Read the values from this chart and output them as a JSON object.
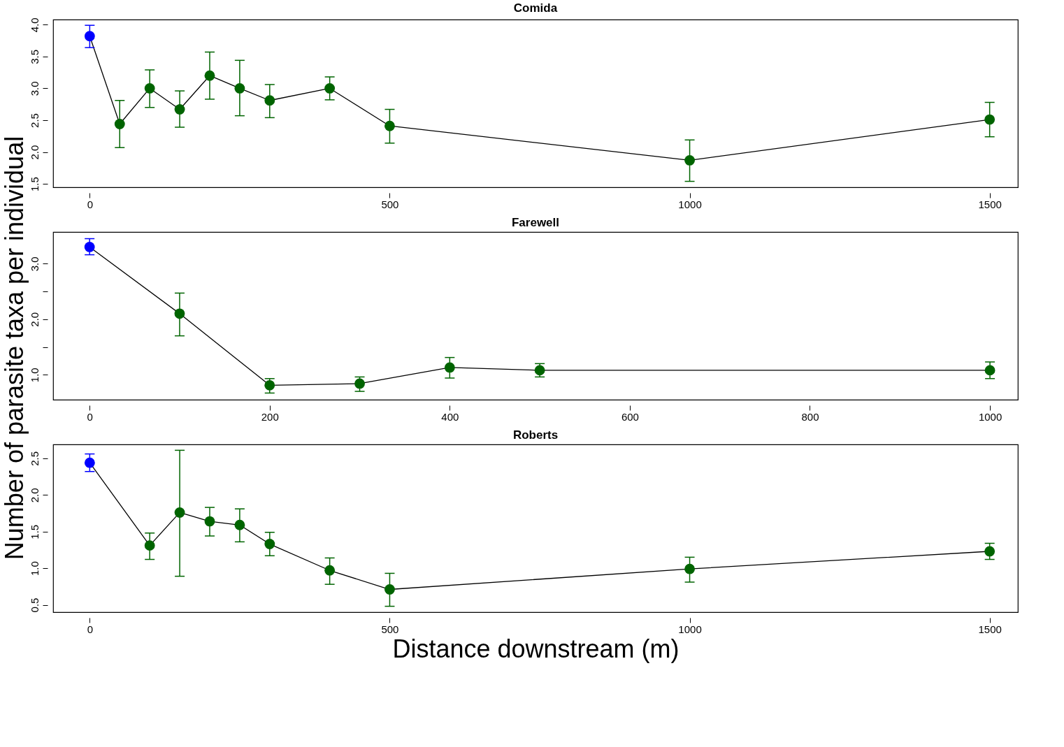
{
  "chart_data": [
    {
      "type": "line",
      "title": "Comida",
      "x": [
        0,
        50,
        100,
        150,
        200,
        250,
        300,
        400,
        500,
        1000,
        1500
      ],
      "xlim": [
        -61,
        1547
      ],
      "ylim": [
        1.447,
        4.08
      ],
      "xticks": [
        0,
        500,
        1000,
        1500
      ],
      "yticks": [
        1.5,
        {
          "value": 2,
          "label": "2.0"
        },
        2.5,
        {
          "value": 3,
          "label": "3.0"
        },
        3.5,
        {
          "value": 4,
          "label": "4.0"
        }
      ],
      "marker": "circle",
      "grid": false,
      "series": [
        {
          "color": "#000000",
          "colors": [
            "#0000ff",
            "#006400",
            "#006400",
            "#006400",
            "#006400",
            "#006400",
            "#006400",
            "#006400",
            "#006400",
            "#006400",
            "#006400"
          ],
          "values": [
            3.82,
            2.44,
            3.0,
            2.67,
            3.2,
            3.0,
            2.81,
            3.0,
            2.41,
            1.87,
            2.51
          ],
          "errors": [
            [
              3.64,
              3.99
            ],
            [
              2.07,
              2.81
            ],
            [
              2.7,
              3.29
            ],
            [
              2.39,
              2.96
            ],
            [
              2.83,
              3.57
            ],
            [
              2.57,
              3.44
            ],
            [
              2.54,
              3.06
            ],
            [
              2.82,
              3.18
            ],
            [
              2.14,
              2.67
            ],
            [
              1.54,
              2.19
            ],
            [
              2.24,
              2.78
            ]
          ]
        }
      ]
    },
    {
      "type": "line",
      "title": "Farewell",
      "ylabel": "Number of parasite taxa per individual",
      "x": [
        0,
        100,
        200,
        300,
        400,
        500,
        1000
      ],
      "xlim": [
        -40.5,
        1031
      ],
      "ylim": [
        0.55,
        3.57
      ],
      "xticks": [
        0,
        200,
        400,
        600,
        800,
        1000
      ],
      "yticks": [
        {
          "value": 1,
          "label": "1.0"
        },
        {
          "value": 1.5,
          "label": null
        },
        {
          "value": 2,
          "label": "2.0"
        },
        {
          "value": 2.5,
          "label": null
        },
        {
          "value": 3,
          "label": "3.0"
        }
      ],
      "marker": "circle",
      "grid": false,
      "series": [
        {
          "color": "#000000",
          "colors": [
            "#0000ff",
            "#006400",
            "#006400",
            "#006400",
            "#006400",
            "#006400",
            "#006400"
          ],
          "values": [
            3.3,
            2.1,
            0.81,
            0.84,
            1.13,
            1.08,
            1.08
          ],
          "errors": [
            [
              3.16,
              3.45
            ],
            [
              1.7,
              2.47
            ],
            [
              0.67,
              0.93
            ],
            [
              0.7,
              0.96
            ],
            [
              0.94,
              1.31
            ],
            [
              0.96,
              1.2
            ],
            [
              0.93,
              1.23
            ]
          ]
        }
      ]
    },
    {
      "type": "line",
      "title": "Roberts",
      "xlabel": "Distance downstream (m)",
      "x": [
        0,
        100,
        150,
        200,
        250,
        300,
        400,
        500,
        1000,
        1500
      ],
      "xlim": [
        -61,
        1547
      ],
      "ylim": [
        0.4,
        2.69
      ],
      "xticks": [
        0,
        500,
        1000,
        1500
      ],
      "yticks": [
        0.5,
        {
          "value": 1,
          "label": "1.0"
        },
        1.5,
        {
          "value": 2,
          "label": "2.0"
        },
        2.5
      ],
      "marker": "circle",
      "grid": false,
      "series": [
        {
          "color": "#000000",
          "colors": [
            "#0000ff",
            "#006400",
            "#006400",
            "#006400",
            "#006400",
            "#006400",
            "#006400",
            "#006400",
            "#006400",
            "#006400"
          ],
          "values": [
            2.44,
            1.31,
            1.76,
            1.64,
            1.59,
            1.33,
            0.97,
            0.71,
            0.99,
            1.23
          ],
          "errors": [
            [
              2.32,
              2.56
            ],
            [
              1.12,
              1.48
            ],
            [
              0.89,
              2.61
            ],
            [
              1.44,
              1.83
            ],
            [
              1.36,
              1.81
            ],
            [
              1.17,
              1.49
            ],
            [
              0.78,
              1.14
            ],
            [
              0.48,
              0.93
            ],
            [
              0.81,
              1.15
            ],
            [
              1.12,
              1.34
            ]
          ]
        }
      ]
    }
  ]
}
